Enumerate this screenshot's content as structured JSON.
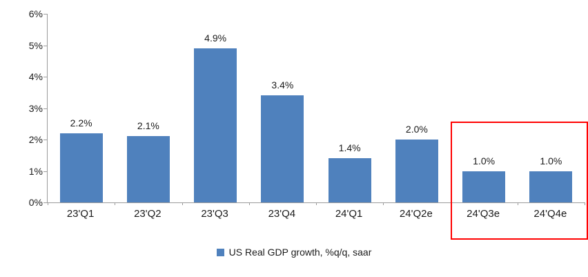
{
  "chart_data": {
    "type": "bar",
    "title": "",
    "categories": [
      "23'Q1",
      "23'Q2",
      "23'Q3",
      "23'Q4",
      "24'Q1",
      "24'Q2e",
      "24'Q3e",
      "24'Q4e"
    ],
    "values": [
      2.2,
      2.1,
      4.9,
      3.4,
      1.4,
      2.0,
      1.0,
      1.0
    ],
    "value_labels": [
      "2.2%",
      "2.1%",
      "4.9%",
      "3.4%",
      "1.4%",
      "2.0%",
      "1.0%",
      "1.0%"
    ],
    "xlabel": "",
    "ylabel": "",
    "ylim": [
      0,
      6
    ],
    "y_tick_labels": [
      "0%",
      "1%",
      "2%",
      "3%",
      "4%",
      "5%",
      "6%"
    ],
    "grid": false,
    "bar_color": "#4F81BD",
    "legend": {
      "position": "bottom",
      "label": "US Real GDP growth, %q/q, saar",
      "swatch_color": "#4F81BD"
    },
    "highlight": {
      "categories": [
        "24'Q3e",
        "24'Q4e"
      ],
      "border_color": "#FF0000"
    }
  }
}
